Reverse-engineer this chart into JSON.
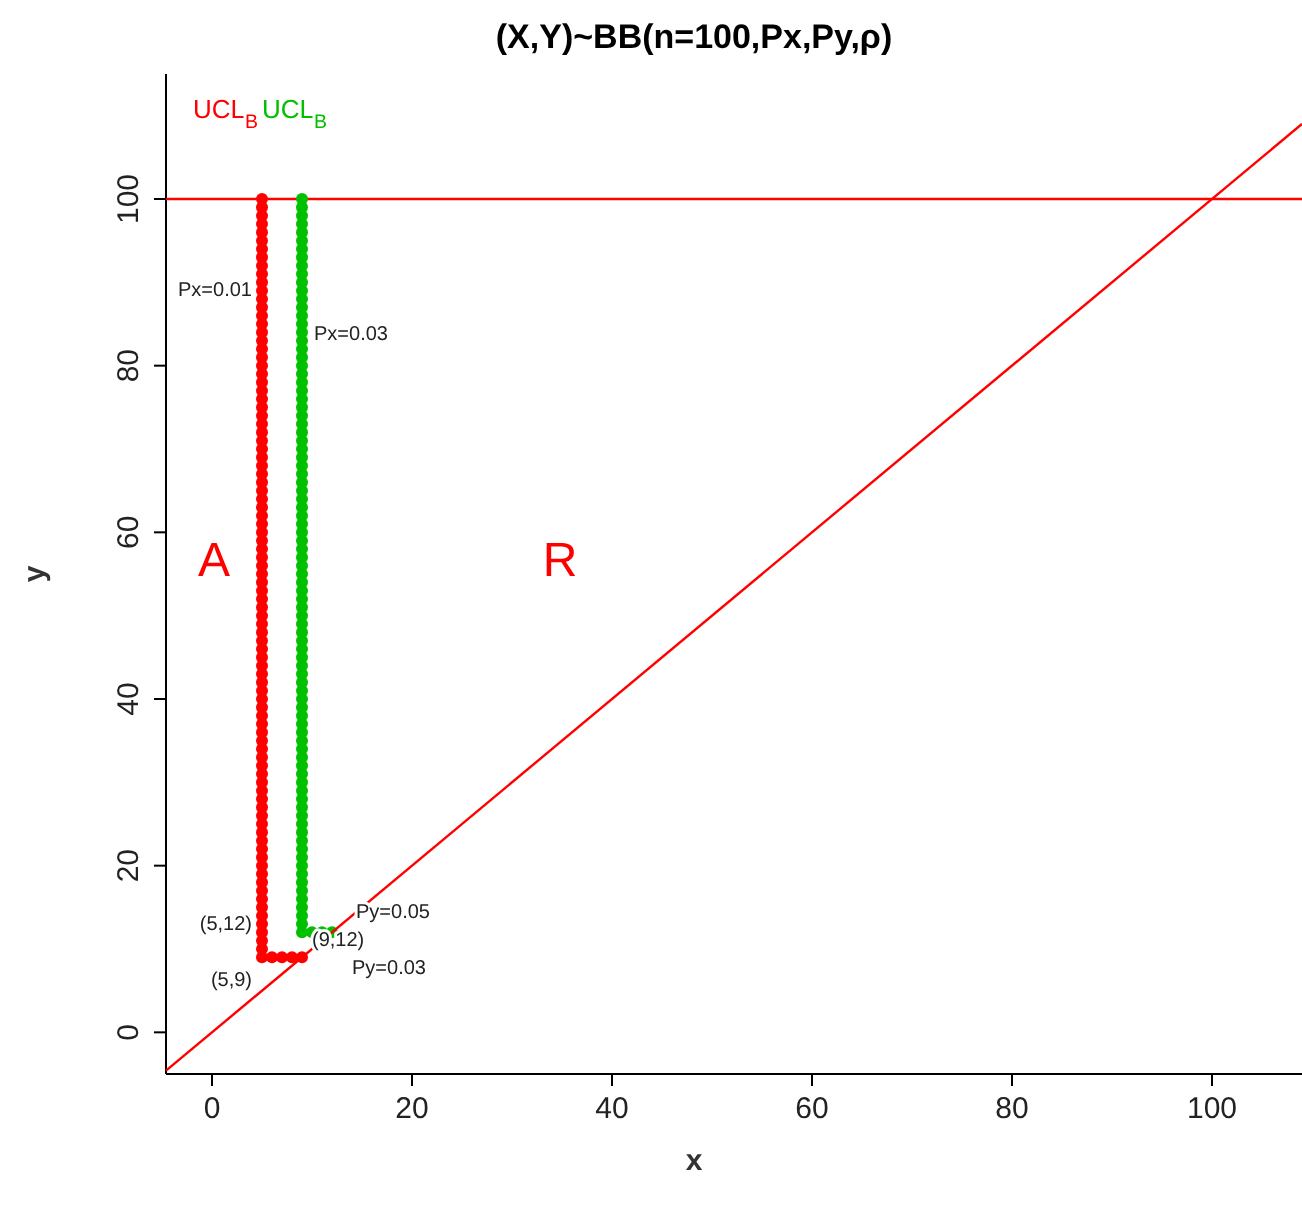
{
  "chart_data": {
    "type": "scatter",
    "title": "(X,Y)~BB(n=100,Px,Py,ρ)",
    "xlabel": "x",
    "ylabel": "y",
    "xlim": [
      -4.6,
      109
    ],
    "ylim": [
      -5,
      115
    ],
    "xticks": [
      0,
      20,
      40,
      60,
      80,
      100
    ],
    "yticks": [
      0,
      20,
      40,
      60,
      80,
      100
    ],
    "marker": "circle",
    "grid": false,
    "series": [
      {
        "color": "#ff0000",
        "x": [
          9,
          8,
          7,
          6,
          5,
          5,
          5,
          5,
          5,
          5,
          5,
          5,
          5,
          5,
          5,
          5,
          5,
          5,
          5,
          5,
          5,
          5,
          5,
          5,
          5,
          5,
          5,
          5,
          5,
          5,
          5,
          5,
          5,
          5,
          5,
          5,
          5,
          5,
          5,
          5,
          5,
          5,
          5,
          5,
          5,
          5,
          5,
          5,
          5,
          5,
          5,
          5,
          5,
          5,
          5,
          5,
          5,
          5,
          5,
          5,
          5,
          5,
          5,
          5,
          5,
          5,
          5,
          5,
          5,
          5,
          5,
          5,
          5,
          5,
          5,
          5,
          5,
          5,
          5,
          5,
          5,
          5,
          5,
          5,
          5,
          5,
          5,
          5,
          5,
          5,
          5,
          5,
          5,
          5,
          5,
          5
        ],
        "values": [
          9,
          9,
          9,
          9,
          9,
          10,
          11,
          12,
          13,
          14,
          15,
          16,
          17,
          18,
          19,
          20,
          21,
          22,
          23,
          24,
          25,
          26,
          27,
          28,
          29,
          30,
          31,
          32,
          33,
          34,
          35,
          36,
          37,
          38,
          39,
          40,
          41,
          42,
          43,
          44,
          45,
          46,
          47,
          48,
          49,
          50,
          51,
          52,
          53,
          54,
          55,
          56,
          57,
          58,
          59,
          60,
          61,
          62,
          63,
          64,
          65,
          66,
          67,
          68,
          69,
          70,
          71,
          72,
          73,
          74,
          75,
          76,
          77,
          78,
          79,
          80,
          81,
          82,
          83,
          84,
          85,
          86,
          87,
          88,
          89,
          90,
          91,
          92,
          93,
          94,
          95,
          96,
          97,
          98,
          99,
          100
        ]
      },
      {
        "color": "#00c000",
        "x": [
          12,
          11,
          10,
          9,
          9,
          9,
          9,
          9,
          9,
          9,
          9,
          9,
          9,
          9,
          9,
          9,
          9,
          9,
          9,
          9,
          9,
          9,
          9,
          9,
          9,
          9,
          9,
          9,
          9,
          9,
          9,
          9,
          9,
          9,
          9,
          9,
          9,
          9,
          9,
          9,
          9,
          9,
          9,
          9,
          9,
          9,
          9,
          9,
          9,
          9,
          9,
          9,
          9,
          9,
          9,
          9,
          9,
          9,
          9,
          9,
          9,
          9,
          9,
          9,
          9,
          9,
          9,
          9,
          9,
          9,
          9,
          9,
          9,
          9,
          9,
          9,
          9,
          9,
          9,
          9,
          9,
          9,
          9,
          9,
          9,
          9,
          9,
          9,
          9,
          9,
          9,
          9
        ],
        "values": [
          12,
          12,
          12,
          12,
          13,
          14,
          15,
          16,
          17,
          18,
          19,
          20,
          21,
          22,
          23,
          24,
          25,
          26,
          27,
          28,
          29,
          30,
          31,
          32,
          33,
          34,
          35,
          36,
          37,
          38,
          39,
          40,
          41,
          42,
          43,
          44,
          45,
          46,
          47,
          48,
          49,
          50,
          51,
          52,
          53,
          54,
          55,
          56,
          57,
          58,
          59,
          60,
          61,
          62,
          63,
          64,
          65,
          66,
          67,
          68,
          69,
          70,
          71,
          72,
          73,
          74,
          75,
          76,
          77,
          78,
          79,
          80,
          81,
          82,
          83,
          84,
          85,
          86,
          87,
          88,
          89,
          90,
          91,
          92,
          93,
          94,
          95,
          96,
          97,
          98,
          99,
          100
        ]
      },
      {
        "type": "line",
        "marker": "none",
        "color": "#ff0000",
        "x": [
          -4.6,
          109
        ],
        "values": [
          -4.6,
          109
        ]
      }
    ],
    "ref_lines": [
      {
        "axis": "y",
        "value": 100,
        "color": "#ff0000"
      }
    ],
    "annotations": [
      "UCL$_{B}$",
      "UCL$_{B}$",
      "Px=0.01",
      "Px=0.03",
      "A",
      "R",
      "(5,12)",
      "(9,12)",
      "(5,9)",
      "Py=0.05",
      "Py=0.03"
    ]
  }
}
